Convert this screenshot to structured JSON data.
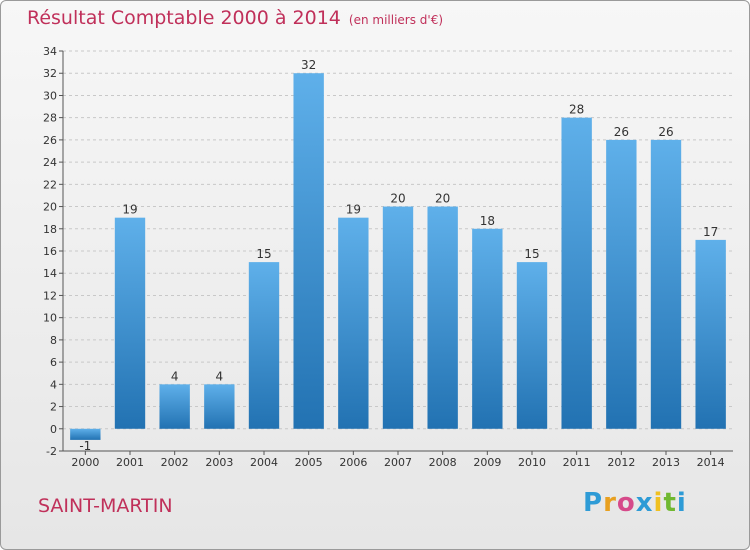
{
  "title": "Résultat Comptable 2000 à 2014",
  "unit": "(en milliers d'€)",
  "commune": "SAINT-MARTIN",
  "logo": {
    "letters": [
      "P",
      "r",
      "o",
      "x",
      "i",
      "t",
      "i"
    ],
    "colors": [
      "#2e9bd6",
      "#e8a020",
      "#d64a8a",
      "#2e9bd6",
      "#f0c020",
      "#70b830",
      "#2e9bd6"
    ]
  },
  "colors": {
    "bar": "#3a8fd0",
    "bar_light": "#5fb0ea",
    "bar_dark": "#2272b2",
    "title": "#c0305a",
    "axis": "#555555"
  },
  "chart_data": {
    "type": "bar",
    "title": "Résultat Comptable 2000 à 2014",
    "subtitle": "(en milliers d'€)",
    "categories": [
      "2000",
      "2001",
      "2002",
      "2003",
      "2004",
      "2005",
      "2006",
      "2007",
      "2008",
      "2009",
      "2010",
      "2011",
      "2012",
      "2013",
      "2014"
    ],
    "values": [
      -1,
      19,
      4,
      4,
      15,
      32,
      19,
      20,
      20,
      18,
      15,
      28,
      26,
      26,
      17
    ],
    "ylim": [
      -2,
      34
    ],
    "yticks": [
      -2,
      0,
      2,
      4,
      6,
      8,
      10,
      12,
      14,
      16,
      18,
      20,
      22,
      24,
      26,
      28,
      30,
      32,
      34
    ],
    "grid": "horizontal-dashed",
    "xlabel": "",
    "ylabel": ""
  }
}
